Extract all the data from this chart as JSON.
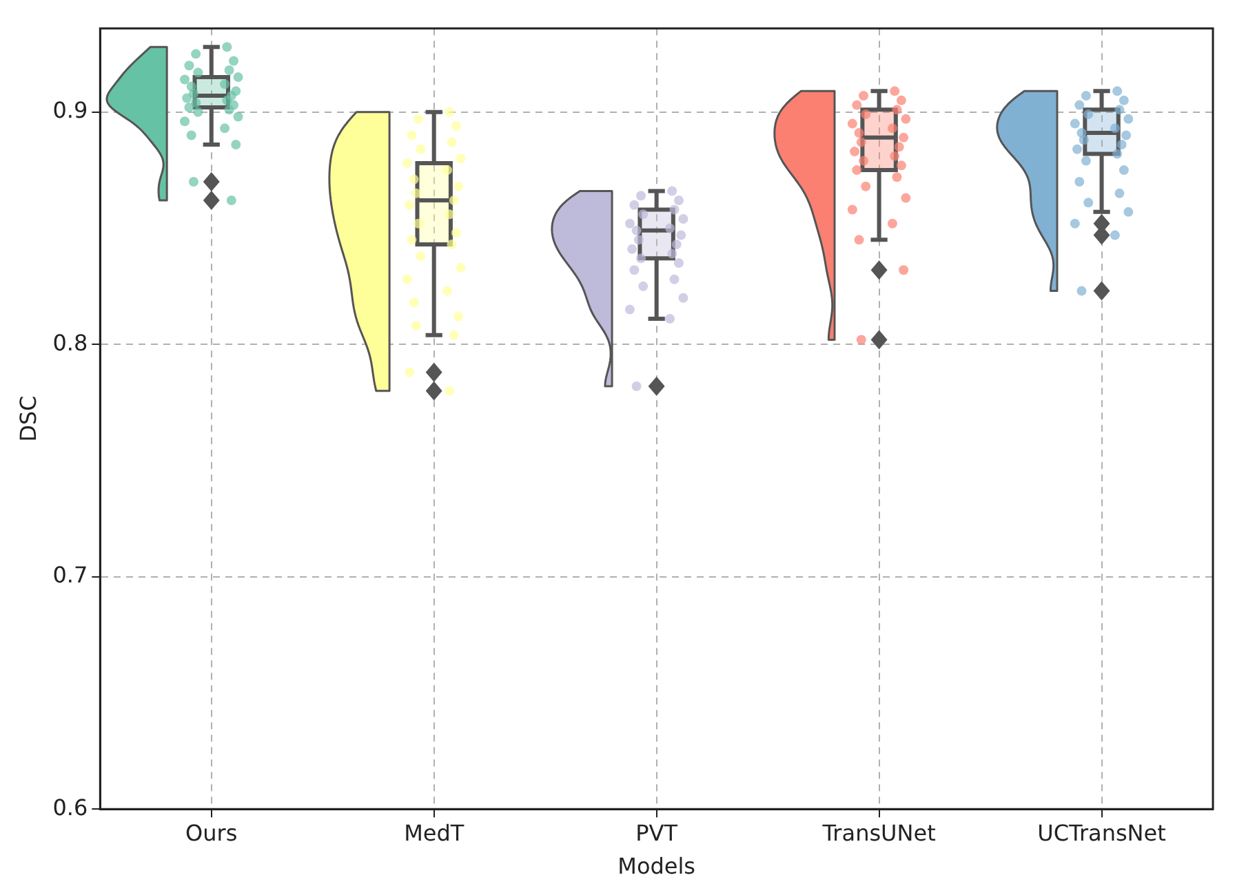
{
  "chart_data": {
    "type": "box",
    "xlabel": "Models",
    "ylabel": "DSC",
    "categories": [
      "Ours",
      "MedT",
      "PVT",
      "TransUNet",
      "UCTransNet"
    ],
    "colors": [
      "#66c2a5",
      "#ffff99",
      "#bebada",
      "#fb8072",
      "#80b1d3"
    ],
    "ylim": [
      0.6,
      0.936
    ],
    "yticks": [
      0.6,
      0.7,
      0.8,
      0.9
    ],
    "grid": true,
    "boxes": [
      {
        "low": 0.886,
        "q1": 0.902,
        "median": 0.907,
        "q3": 0.915,
        "high": 0.928,
        "outliers": [
          0.87,
          0.862
        ]
      },
      {
        "low": 0.804,
        "q1": 0.843,
        "median": 0.862,
        "q3": 0.878,
        "high": 0.9,
        "outliers": [
          0.788,
          0.78
        ]
      },
      {
        "low": 0.811,
        "q1": 0.837,
        "median": 0.849,
        "q3": 0.858,
        "high": 0.866,
        "outliers": [
          0.782
        ]
      },
      {
        "low": 0.845,
        "q1": 0.875,
        "median": 0.889,
        "q3": 0.901,
        "high": 0.909,
        "outliers": [
          0.832,
          0.802
        ]
      },
      {
        "low": 0.857,
        "q1": 0.882,
        "median": 0.891,
        "q3": 0.901,
        "high": 0.909,
        "outliers": [
          0.852,
          0.847,
          0.823
        ]
      }
    ],
    "series": [
      {
        "type": "scatter",
        "color": "#66c2a5",
        "x": [
          "Ours",
          "Ours",
          "Ours",
          "Ours",
          "Ours",
          "Ours",
          "Ours",
          "Ours",
          "Ours",
          "Ours",
          "Ours",
          "Ours",
          "Ours",
          "Ours",
          "Ours",
          "Ours",
          "Ours",
          "Ours",
          "Ours",
          "Ours",
          "Ours",
          "Ours",
          "Ours",
          "Ours",
          "Ours",
          "Ours",
          "Ours"
        ],
        "values": [
          0.928,
          0.925,
          0.922,
          0.92,
          0.918,
          0.917,
          0.915,
          0.914,
          0.912,
          0.911,
          0.909,
          0.908,
          0.907,
          0.906,
          0.905,
          0.904,
          0.903,
          0.902,
          0.901,
          0.9,
          0.898,
          0.896,
          0.893,
          0.89,
          0.886,
          0.87,
          0.862
        ]
      },
      {
        "type": "scatter",
        "color": "#ffff99",
        "x": [
          "MedT",
          "MedT",
          "MedT",
          "MedT",
          "MedT",
          "MedT",
          "MedT",
          "MedT",
          "MedT",
          "MedT",
          "MedT",
          "MedT",
          "MedT",
          "MedT",
          "MedT",
          "MedT",
          "MedT",
          "MedT",
          "MedT",
          "MedT",
          "MedT",
          "MedT",
          "MedT",
          "MedT",
          "MedT",
          "MedT",
          "MedT",
          "MedT",
          "MedT"
        ],
        "values": [
          0.9,
          0.897,
          0.894,
          0.89,
          0.887,
          0.884,
          0.88,
          0.878,
          0.875,
          0.871,
          0.868,
          0.865,
          0.862,
          0.86,
          0.856,
          0.852,
          0.848,
          0.845,
          0.843,
          0.838,
          0.833,
          0.828,
          0.823,
          0.818,
          0.812,
          0.808,
          0.804,
          0.788,
          0.78
        ]
      },
      {
        "type": "scatter",
        "color": "#bebada",
        "x": [
          "PVT",
          "PVT",
          "PVT",
          "PVT",
          "PVT",
          "PVT",
          "PVT",
          "PVT",
          "PVT",
          "PVT",
          "PVT",
          "PVT",
          "PVT",
          "PVT",
          "PVT",
          "PVT",
          "PVT",
          "PVT",
          "PVT",
          "PVT",
          "PVT",
          "PVT",
          "PVT",
          "PVT"
        ],
        "values": [
          0.866,
          0.864,
          0.862,
          0.86,
          0.858,
          0.856,
          0.854,
          0.852,
          0.85,
          0.849,
          0.847,
          0.845,
          0.843,
          0.841,
          0.839,
          0.837,
          0.835,
          0.832,
          0.828,
          0.825,
          0.82,
          0.815,
          0.811,
          0.782
        ]
      },
      {
        "type": "scatter",
        "color": "#fb8072",
        "x": [
          "TransUNet",
          "TransUNet",
          "TransUNet",
          "TransUNet",
          "TransUNet",
          "TransUNet",
          "TransUNet",
          "TransUNet",
          "TransUNet",
          "TransUNet",
          "TransUNet",
          "TransUNet",
          "TransUNet",
          "TransUNet",
          "TransUNet",
          "TransUNet",
          "TransUNet",
          "TransUNet",
          "TransUNet",
          "TransUNet",
          "TransUNet",
          "TransUNet",
          "TransUNet",
          "TransUNet",
          "TransUNet",
          "TransUNet"
        ],
        "values": [
          0.909,
          0.907,
          0.905,
          0.903,
          0.901,
          0.899,
          0.897,
          0.895,
          0.893,
          0.891,
          0.889,
          0.887,
          0.885,
          0.883,
          0.881,
          0.879,
          0.877,
          0.875,
          0.872,
          0.868,
          0.863,
          0.858,
          0.852,
          0.845,
          0.832,
          0.802
        ]
      },
      {
        "type": "scatter",
        "color": "#80b1d3",
        "x": [
          "UCTransNet",
          "UCTransNet",
          "UCTransNet",
          "UCTransNet",
          "UCTransNet",
          "UCTransNet",
          "UCTransNet",
          "UCTransNet",
          "UCTransNet",
          "UCTransNet",
          "UCTransNet",
          "UCTransNet",
          "UCTransNet",
          "UCTransNet",
          "UCTransNet",
          "UCTransNet",
          "UCTransNet",
          "UCTransNet",
          "UCTransNet",
          "UCTransNet",
          "UCTransNet",
          "UCTransNet",
          "UCTransNet",
          "UCTransNet"
        ],
        "values": [
          0.909,
          0.907,
          0.905,
          0.903,
          0.901,
          0.899,
          0.897,
          0.895,
          0.893,
          0.891,
          0.89,
          0.888,
          0.886,
          0.884,
          0.882,
          0.879,
          0.875,
          0.87,
          0.865,
          0.861,
          0.857,
          0.852,
          0.847,
          0.823
        ]
      }
    ]
  }
}
